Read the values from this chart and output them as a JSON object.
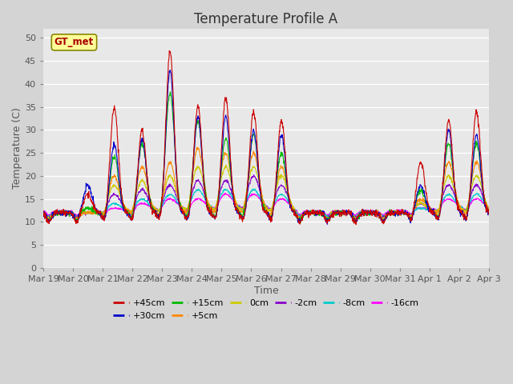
{
  "title": "Temperature Profile A",
  "xlabel": "Time",
  "ylabel": "Temperature (C)",
  "ylim": [
    0,
    52
  ],
  "yticks": [
    0,
    5,
    10,
    15,
    20,
    25,
    30,
    35,
    40,
    45,
    50
  ],
  "plot_bg_color": "#e8e8e8",
  "fig_bg_color": "#d4d4d4",
  "grid_color": "#ffffff",
  "series_colors": {
    "+45cm": "#cc0000",
    "+30cm": "#0000cc",
    "+15cm": "#00bb00",
    "+5cm": "#ff8800",
    "0cm": "#cccc00",
    "-2cm": "#8800cc",
    "-8cm": "#00cccc",
    "-16cm": "#ff00ff"
  },
  "gt_met_box_facecolor": "#ffff99",
  "gt_met_text_color": "#aa0000",
  "gt_met_edge_color": "#888800",
  "x_tick_labels": [
    "Mar 19",
    "Mar 20",
    "Mar 21",
    "Mar 22",
    "Mar 23",
    "Mar 24",
    "Mar 25",
    "Mar 26",
    "Mar 27",
    "Mar 28",
    "Mar 29",
    "Mar 30",
    "Mar 31",
    "Apr 1",
    "Apr 2",
    "Apr 3"
  ],
  "title_fontsize": 12,
  "axis_label_fontsize": 9,
  "tick_fontsize": 8,
  "legend_fontsize": 8,
  "peak_days": [
    1.6,
    2.55,
    3.55,
    4.55,
    5.55,
    6.55,
    7.55,
    8.55,
    13.55,
    14.55,
    15.55
  ],
  "peak_45cm": [
    16,
    35,
    30,
    47,
    35,
    37,
    34,
    32,
    23,
    32,
    34
  ],
  "peak_30cm": [
    18,
    27,
    28,
    43,
    33,
    33,
    30,
    29,
    18,
    30,
    29
  ],
  "peak_15cm": [
    13,
    24,
    27,
    38,
    32,
    28,
    29,
    25,
    17,
    27,
    27
  ],
  "peak_5cm": [
    12,
    20,
    22,
    23,
    26,
    25,
    25,
    22,
    15,
    23,
    23
  ],
  "peak_0cm": [
    12,
    18,
    19,
    20,
    22,
    22,
    22,
    20,
    14,
    20,
    20
  ],
  "peak_m2cm": [
    12,
    16,
    17,
    18,
    19,
    19,
    20,
    18,
    14,
    18,
    18
  ],
  "peak_m8cm": [
    12,
    14,
    15,
    16,
    17,
    17,
    17,
    16,
    13,
    16,
    16
  ],
  "peak_m16cm": [
    12,
    13,
    14,
    15,
    15,
    16,
    16,
    15,
    13,
    15,
    15
  ],
  "base_temp": 12.0,
  "trough_temp": 10.5,
  "n_points": 1500
}
